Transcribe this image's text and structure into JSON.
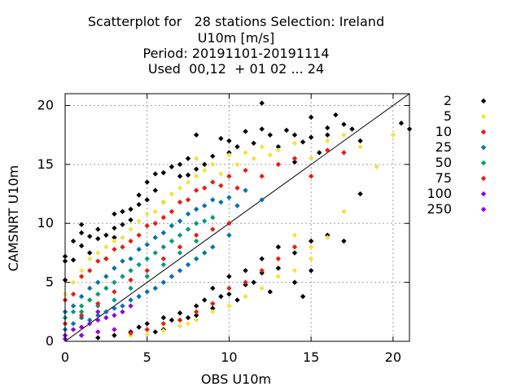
{
  "chart_data": {
    "type": "scatter",
    "title_lines": [
      "Scatterplot for   28 stations Selection: Ireland",
      "U10m [m/s]",
      "Period: 20191101-20191114",
      "Used  00,12  + 01 02 ... 24"
    ],
    "xlabel": "OBS U10m",
    "ylabel": "CAMSNRT U10m",
    "xlim": [
      0,
      21
    ],
    "ylim": [
      0,
      21
    ],
    "x_ticks": [
      0,
      5,
      10,
      15,
      20
    ],
    "y_ticks": [
      0,
      5,
      10,
      15,
      20
    ],
    "grid": true,
    "diagonal": true,
    "legend_position": "outside-right",
    "legend": [
      {
        "label": "2",
        "color": "#000000"
      },
      {
        "label": "5",
        "color": "#f0e442"
      },
      {
        "label": "10",
        "color": "#e51e10"
      },
      {
        "label": "25",
        "color": "#0072b2"
      },
      {
        "label": "50",
        "color": "#009e73"
      },
      {
        "label": "75",
        "color": "#e51e10"
      },
      {
        "label": "100",
        "color": "#9400d3"
      },
      {
        "label": "250",
        "color": "#9400d3"
      }
    ],
    "layers": [
      {
        "label": "2",
        "color": "#000000",
        "points": [
          [
            0,
            5.2
          ],
          [
            0,
            6.8
          ],
          [
            0,
            7.2
          ],
          [
            0.5,
            6.9
          ],
          [
            0.5,
            8.5
          ],
          [
            1,
            9.2
          ],
          [
            1,
            9.9
          ],
          [
            1,
            8.1
          ],
          [
            1.5,
            7.5
          ],
          [
            1.5,
            8.9
          ],
          [
            2,
            9.5
          ],
          [
            2,
            8.7
          ],
          [
            2.5,
            9.0
          ],
          [
            2.5,
            7.0
          ],
          [
            3,
            8.8
          ],
          [
            3,
            9.6
          ],
          [
            3,
            10.8
          ],
          [
            3.5,
            9.9
          ],
          [
            3.5,
            11.0
          ],
          [
            4,
            10.3
          ],
          [
            4,
            11.2
          ],
          [
            4.5,
            11.6
          ],
          [
            4.5,
            12.4
          ],
          [
            5,
            12.0
          ],
          [
            5,
            13.5
          ],
          [
            5.5,
            12.8
          ],
          [
            5.5,
            14.2
          ],
          [
            6,
            14.3
          ],
          [
            6,
            11.8
          ],
          [
            6.5,
            14.8
          ],
          [
            7,
            14.0
          ],
          [
            7,
            15.0
          ],
          [
            7.5,
            15.5
          ],
          [
            7.5,
            14.1
          ],
          [
            8,
            14.6
          ],
          [
            8,
            17.5
          ],
          [
            8.5,
            15.0
          ],
          [
            9,
            15.7
          ],
          [
            9.5,
            17.2
          ],
          [
            10,
            17.0
          ],
          [
            10,
            16.0
          ],
          [
            10.5,
            16.5
          ],
          [
            11,
            17.8
          ],
          [
            11.5,
            16.8
          ],
          [
            12,
            18.0
          ],
          [
            12,
            20.2
          ],
          [
            12.5,
            17.5
          ],
          [
            13,
            16.5
          ],
          [
            13.5,
            17.9
          ],
          [
            14,
            17.5
          ],
          [
            14,
            15.2
          ],
          [
            14.5,
            16.9
          ],
          [
            15,
            17.3
          ],
          [
            15,
            19.0
          ],
          [
            15.5,
            16.0
          ],
          [
            16,
            18.1
          ],
          [
            16,
            17.5
          ],
          [
            16.5,
            19.2
          ],
          [
            17,
            18.4
          ],
          [
            17.5,
            18.0
          ],
          [
            18,
            17.0
          ],
          [
            18,
            12.5
          ],
          [
            20.5,
            18.5
          ],
          [
            21,
            18.0
          ],
          [
            2,
            0.3
          ],
          [
            3,
            0.5
          ],
          [
            4,
            0.8
          ],
          [
            4.5,
            1.2
          ],
          [
            5,
            1.5
          ],
          [
            5.5,
            0.8
          ],
          [
            6,
            1.0
          ],
          [
            6,
            2.0
          ],
          [
            6.5,
            1.8
          ],
          [
            7,
            2.4
          ],
          [
            7.5,
            2.0
          ],
          [
            8,
            3.0
          ],
          [
            8,
            2.2
          ],
          [
            8.5,
            3.5
          ],
          [
            9,
            2.8
          ],
          [
            9,
            4.5
          ],
          [
            9.5,
            3.8
          ],
          [
            10,
            4.0
          ],
          [
            10,
            5.5
          ],
          [
            10.5,
            3.5
          ],
          [
            11,
            4.8
          ],
          [
            11,
            6.0
          ],
          [
            11.5,
            5.0
          ],
          [
            12,
            5.8
          ],
          [
            12,
            7.0
          ],
          [
            12.5,
            4.2
          ],
          [
            13,
            6.2
          ],
          [
            13,
            8.0
          ],
          [
            14,
            5.0
          ],
          [
            14,
            7.5
          ],
          [
            14.5,
            3.8
          ],
          [
            15,
            6.0
          ],
          [
            15,
            8.5
          ],
          [
            16,
            9.0
          ],
          [
            17,
            8.5
          ]
        ]
      },
      {
        "label": "5",
        "color": "#f0e442",
        "points": [
          [
            0,
            4.0
          ],
          [
            0.5,
            5.0
          ],
          [
            1,
            6.0
          ],
          [
            1.5,
            7.0
          ],
          [
            2,
            7.5
          ],
          [
            2.5,
            8.0
          ],
          [
            3,
            8.5
          ],
          [
            3.5,
            8.8
          ],
          [
            4,
            9.5
          ],
          [
            4.5,
            10.2
          ],
          [
            5,
            10.8
          ],
          [
            5.5,
            11.0
          ],
          [
            6,
            11.8
          ],
          [
            6.5,
            12.5
          ],
          [
            7,
            13.0
          ],
          [
            7.5,
            13.5
          ],
          [
            8,
            14.0
          ],
          [
            8,
            15.5
          ],
          [
            8.5,
            14.5
          ],
          [
            9,
            15.0
          ],
          [
            9.5,
            14.2
          ],
          [
            10,
            15.8
          ],
          [
            10.5,
            15.0
          ],
          [
            11,
            16.0
          ],
          [
            11.5,
            15.5
          ],
          [
            12,
            16.5
          ],
          [
            12.5,
            15.8
          ],
          [
            13,
            16.2
          ],
          [
            14,
            16.8
          ],
          [
            15,
            15.5
          ],
          [
            16,
            17.0
          ],
          [
            17,
            17.5
          ],
          [
            18,
            16.5
          ],
          [
            19,
            14.8
          ],
          [
            20,
            17.5
          ],
          [
            4,
            0.5
          ],
          [
            5,
            0.6
          ],
          [
            6,
            0.9
          ],
          [
            7,
            1.3
          ],
          [
            7.5,
            1.5
          ],
          [
            8,
            1.8
          ],
          [
            9,
            2.5
          ],
          [
            10,
            3.0
          ],
          [
            11,
            3.8
          ],
          [
            12,
            4.5
          ],
          [
            13,
            5.5
          ],
          [
            14,
            6.0
          ],
          [
            15,
            7.0
          ],
          [
            16,
            8.8
          ],
          [
            15,
            8.0
          ],
          [
            14,
            9.0
          ],
          [
            17,
            11.0
          ]
        ]
      },
      {
        "label": "10",
        "color": "#e51e10",
        "points": [
          [
            0,
            3.5
          ],
          [
            0.5,
            4.0
          ],
          [
            1,
            5.5
          ],
          [
            1.5,
            6.0
          ],
          [
            2,
            6.8
          ],
          [
            2.5,
            7.0
          ],
          [
            3,
            7.8
          ],
          [
            3.5,
            8.0
          ],
          [
            4,
            8.5
          ],
          [
            4.5,
            9.0
          ],
          [
            5,
            9.8
          ],
          [
            5.5,
            10.0
          ],
          [
            6,
            10.5
          ],
          [
            6.5,
            11.0
          ],
          [
            7,
            11.8
          ],
          [
            7.5,
            12.0
          ],
          [
            8,
            12.8
          ],
          [
            8.5,
            13.0
          ],
          [
            9,
            13.5
          ],
          [
            9.5,
            13.2
          ],
          [
            10,
            14.0
          ],
          [
            10.5,
            13.0
          ],
          [
            11,
            14.5
          ],
          [
            12,
            14.0
          ],
          [
            13,
            15.0
          ],
          [
            14,
            15.5
          ],
          [
            15,
            14.0
          ],
          [
            16,
            16.2
          ],
          [
            17,
            16.0
          ],
          [
            4,
            0.7
          ],
          [
            5,
            1.0
          ],
          [
            6,
            1.5
          ],
          [
            7,
            1.8
          ],
          [
            8,
            2.5
          ],
          [
            9,
            3.2
          ],
          [
            10,
            4.5
          ],
          [
            11,
            5.0
          ],
          [
            12,
            6.0
          ],
          [
            13,
            7.0
          ],
          [
            14,
            8.0
          ]
        ]
      },
      {
        "label": "25",
        "color": "#0072b2",
        "points": [
          [
            0,
            2.5
          ],
          [
            0.5,
            3.0
          ],
          [
            1,
            3.8
          ],
          [
            1.5,
            4.5
          ],
          [
            2,
            5.0
          ],
          [
            2.5,
            5.5
          ],
          [
            3,
            6.2
          ],
          [
            3.5,
            6.8
          ],
          [
            4,
            7.0
          ],
          [
            4.5,
            7.8
          ],
          [
            5,
            8.2
          ],
          [
            5.5,
            8.8
          ],
          [
            6,
            9.2
          ],
          [
            6.5,
            9.8
          ],
          [
            7,
            10.2
          ],
          [
            7.5,
            10.8
          ],
          [
            8,
            11.2
          ],
          [
            8.5,
            11.5
          ],
          [
            9,
            12.0
          ],
          [
            9.5,
            11.8
          ],
          [
            10,
            12.2
          ],
          [
            10.5,
            11.5
          ],
          [
            11,
            12.8
          ],
          [
            12,
            12.0
          ],
          [
            0,
            1.0
          ],
          [
            0.5,
            1.5
          ],
          [
            1,
            2.0
          ],
          [
            1.5,
            1.8
          ],
          [
            2,
            2.2
          ],
          [
            2.5,
            2.5
          ],
          [
            3,
            2.8
          ],
          [
            3.5,
            3.0
          ],
          [
            4,
            3.5
          ],
          [
            4.5,
            3.8
          ],
          [
            5,
            4.2
          ],
          [
            5.5,
            4.5
          ],
          [
            6,
            5.0
          ],
          [
            6.5,
            5.5
          ],
          [
            7,
            6.0
          ],
          [
            7.5,
            6.5
          ],
          [
            8,
            7.0
          ],
          [
            8.5,
            7.5
          ],
          [
            9,
            8.0
          ],
          [
            10,
            9.0
          ]
        ]
      },
      {
        "label": "50",
        "color": "#009e73",
        "points": [
          [
            0,
            2.0
          ],
          [
            0.5,
            2.5
          ],
          [
            1,
            3.0
          ],
          [
            1.5,
            3.5
          ],
          [
            2,
            4.0
          ],
          [
            2.5,
            4.5
          ],
          [
            3,
            5.0
          ],
          [
            3.5,
            5.5
          ],
          [
            4,
            6.0
          ],
          [
            4.5,
            6.5
          ],
          [
            5,
            7.0
          ],
          [
            5.5,
            7.5
          ],
          [
            6,
            8.0
          ],
          [
            6.5,
            8.5
          ],
          [
            7,
            9.0
          ],
          [
            7.5,
            9.5
          ],
          [
            8,
            10.0
          ],
          [
            8.5,
            10.2
          ],
          [
            9,
            10.5
          ],
          [
            1,
            2.5
          ],
          [
            2,
            3.0
          ],
          [
            3,
            3.5
          ],
          [
            4,
            4.5
          ],
          [
            5,
            5.5
          ],
          [
            6,
            6.5
          ],
          [
            7,
            7.5
          ],
          [
            8,
            8.5
          ]
        ]
      },
      {
        "label": "75",
        "color": "#e51e10",
        "points": [
          [
            0,
            1.5
          ],
          [
            1,
            2.2
          ],
          [
            2,
            3.2
          ],
          [
            3,
            4.2
          ],
          [
            4,
            5.2
          ],
          [
            5,
            6.0
          ],
          [
            6,
            7.0
          ],
          [
            7,
            8.0
          ],
          [
            8,
            9.0
          ],
          [
            9,
            9.5
          ],
          [
            10,
            10.0
          ]
        ]
      },
      {
        "label": "100",
        "color": "#9400d3",
        "points": [
          [
            0,
            0.5
          ],
          [
            0.5,
            1.0
          ],
          [
            1,
            1.2
          ],
          [
            1.5,
            1.5
          ],
          [
            2,
            1.8
          ],
          [
            2,
            2.5
          ],
          [
            2.5,
            2.0
          ],
          [
            3,
            2.2
          ],
          [
            3.5,
            2.5
          ],
          [
            4,
            3.0
          ]
        ]
      },
      {
        "label": "250",
        "color": "#9400d3",
        "points": [
          [
            0,
            0.2
          ],
          [
            1,
            0.5
          ],
          [
            2,
            0.8
          ],
          [
            3,
            1.0
          ]
        ]
      }
    ]
  }
}
